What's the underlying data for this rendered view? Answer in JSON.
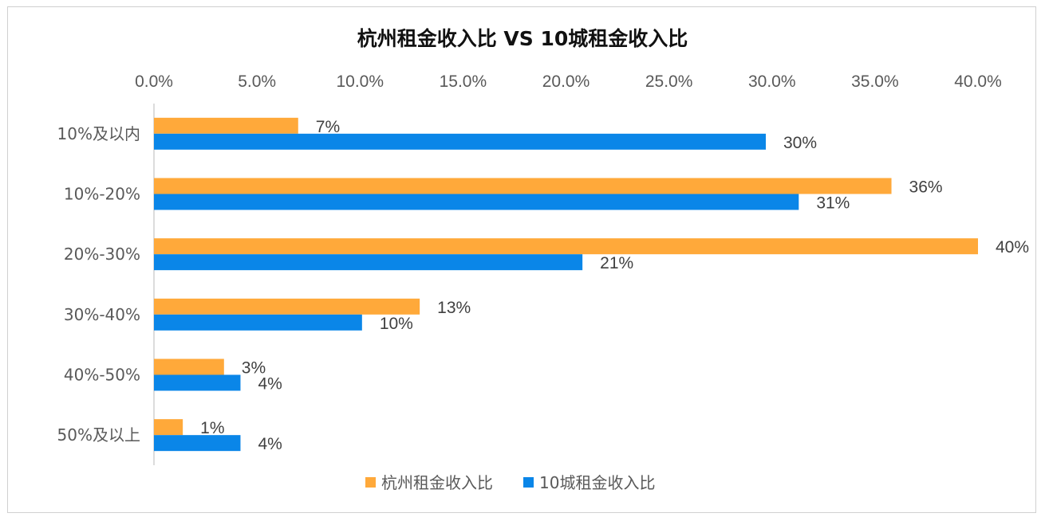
{
  "chart_data": {
    "type": "bar",
    "orientation": "horizontal",
    "title": "杭州租金收入比 VS 10城租金收入比",
    "categories": [
      "10%及以内",
      "10%-20%",
      "20%-30%",
      "30%-40%",
      "40%-50%",
      "50%及以上"
    ],
    "series": [
      {
        "name": "杭州租金收入比",
        "color": "#FFA93A",
        "values": [
          0.07,
          0.358,
          0.4,
          0.129,
          0.034,
          0.014
        ],
        "labels": [
          "7%",
          "36%",
          "40%",
          "13%",
          "3%",
          "1%"
        ]
      },
      {
        "name": "10城租金收入比",
        "color": "#0A86E8",
        "values": [
          0.297,
          0.313,
          0.208,
          0.101,
          0.042,
          0.042
        ],
        "labels": [
          "30%",
          "31%",
          "21%",
          "10%",
          "4%",
          "4%"
        ]
      }
    ],
    "xlim": [
      0,
      0.4
    ],
    "xticks": [
      "0.0%",
      "5.0%",
      "10.0%",
      "15.0%",
      "20.0%",
      "25.0%",
      "30.0%",
      "35.0%",
      "40.0%"
    ],
    "xaxis_position": "top",
    "grid": false,
    "legend_position": "bottom"
  }
}
